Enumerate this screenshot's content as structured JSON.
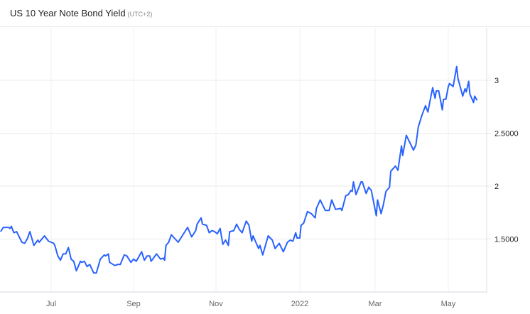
{
  "header": {
    "title": "US 10 Year Note Bond Yield",
    "timezone": "(UTC+2)"
  },
  "colors": {
    "line": "#2962ff",
    "grid": "#e8e8e8",
    "axis": "#dcdcdc"
  },
  "chart_data": {
    "type": "line",
    "title": "US 10 Year Note Bond Yield",
    "xlabel": "",
    "ylabel": "",
    "ylim": [
      1.0,
      3.2
    ],
    "y_ticks": [
      {
        "value": 1.5,
        "label": "1.5000"
      },
      {
        "value": 2,
        "label": "2"
      },
      {
        "value": 2.5,
        "label": "2.5000"
      },
      {
        "value": 3,
        "label": "3"
      }
    ],
    "x_ticks": [
      {
        "date": "2021-07-01",
        "label": "Jul"
      },
      {
        "date": "2021-09-01",
        "label": "Sep"
      },
      {
        "date": "2021-11-01",
        "label": "Nov"
      },
      {
        "date": "2022-01-01",
        "label": "2022"
      },
      {
        "date": "2022-03-01",
        "label": "Mar"
      },
      {
        "date": "2022-05-01",
        "label": "May"
      }
    ],
    "y_axis_position": "right",
    "grid": true,
    "legend": "none",
    "series": [
      {
        "points": [
          [
            "2021-05-24",
            1.57
          ],
          [
            "2021-05-26",
            1.61
          ],
          [
            "2021-05-30",
            1.61
          ],
          [
            "2021-05-31",
            1.6
          ],
          [
            "2021-06-01",
            1.62
          ],
          [
            "2021-06-03",
            1.56
          ],
          [
            "2021-06-05",
            1.57
          ],
          [
            "2021-06-09",
            1.47
          ],
          [
            "2021-06-11",
            1.46
          ],
          [
            "2021-06-13",
            1.5
          ],
          [
            "2021-06-15",
            1.57
          ],
          [
            "2021-06-18",
            1.44
          ],
          [
            "2021-06-21",
            1.49
          ],
          [
            "2021-06-22",
            1.47
          ],
          [
            "2021-06-26",
            1.53
          ],
          [
            "2021-06-29",
            1.48
          ],
          [
            "2021-07-03",
            1.46
          ],
          [
            "2021-07-04",
            1.43
          ],
          [
            "2021-07-06",
            1.34
          ],
          [
            "2021-07-08",
            1.3
          ],
          [
            "2021-07-10",
            1.36
          ],
          [
            "2021-07-12",
            1.36
          ],
          [
            "2021-07-14",
            1.42
          ],
          [
            "2021-07-16",
            1.31
          ],
          [
            "2021-07-18",
            1.29
          ],
          [
            "2021-07-20",
            1.2
          ],
          [
            "2021-07-23",
            1.29
          ],
          [
            "2021-07-24",
            1.28
          ],
          [
            "2021-07-26",
            1.29
          ],
          [
            "2021-07-28",
            1.24
          ],
          [
            "2021-07-30",
            1.26
          ],
          [
            "2021-08-02",
            1.18
          ],
          [
            "2021-08-04",
            1.18
          ],
          [
            "2021-08-07",
            1.31
          ],
          [
            "2021-08-10",
            1.35
          ],
          [
            "2021-08-11",
            1.34
          ],
          [
            "2021-08-13",
            1.36
          ],
          [
            "2021-08-14",
            1.28
          ],
          [
            "2021-08-18",
            1.25
          ],
          [
            "2021-08-20",
            1.26
          ],
          [
            "2021-08-22",
            1.26
          ],
          [
            "2021-08-25",
            1.35
          ],
          [
            "2021-08-27",
            1.34
          ],
          [
            "2021-08-28",
            1.32
          ],
          [
            "2021-08-30",
            1.28
          ],
          [
            "2021-09-01",
            1.31
          ],
          [
            "2021-09-03",
            1.29
          ],
          [
            "2021-09-07",
            1.38
          ],
          [
            "2021-09-09",
            1.3
          ],
          [
            "2021-09-11",
            1.34
          ],
          [
            "2021-09-13",
            1.34
          ],
          [
            "2021-09-14",
            1.29
          ],
          [
            "2021-09-18",
            1.36
          ],
          [
            "2021-09-21",
            1.31
          ],
          [
            "2021-09-23",
            1.32
          ],
          [
            "2021-09-24",
            1.3
          ],
          [
            "2021-09-25",
            1.44
          ],
          [
            "2021-09-27",
            1.47
          ],
          [
            "2021-09-29",
            1.54
          ],
          [
            "2021-10-04",
            1.47
          ],
          [
            "2021-10-07",
            1.53
          ],
          [
            "2021-10-11",
            1.61
          ],
          [
            "2021-10-14",
            1.52
          ],
          [
            "2021-10-17",
            1.58
          ],
          [
            "2021-10-18",
            1.64
          ],
          [
            "2021-10-21",
            1.7
          ],
          [
            "2021-10-22",
            1.64
          ],
          [
            "2021-10-25",
            1.63
          ],
          [
            "2021-10-27",
            1.56
          ],
          [
            "2021-10-29",
            1.58
          ],
          [
            "2021-10-31",
            1.57
          ],
          [
            "2021-11-02",
            1.55
          ],
          [
            "2021-11-04",
            1.6
          ],
          [
            "2021-11-06",
            1.45
          ],
          [
            "2021-11-08",
            1.49
          ],
          [
            "2021-11-10",
            1.44
          ],
          [
            "2021-11-11",
            1.57
          ],
          [
            "2021-11-14",
            1.58
          ],
          [
            "2021-11-16",
            1.64
          ],
          [
            "2021-11-18",
            1.59
          ],
          [
            "2021-11-20",
            1.56
          ],
          [
            "2021-11-23",
            1.67
          ],
          [
            "2021-11-25",
            1.63
          ],
          [
            "2021-11-27",
            1.48
          ],
          [
            "2021-11-28",
            1.53
          ],
          [
            "2021-12-02",
            1.41
          ],
          [
            "2021-12-03",
            1.44
          ],
          [
            "2021-12-05",
            1.35
          ],
          [
            "2021-12-09",
            1.53
          ],
          [
            "2021-12-12",
            1.49
          ],
          [
            "2021-12-14",
            1.41
          ],
          [
            "2021-12-17",
            1.46
          ],
          [
            "2021-12-20",
            1.38
          ],
          [
            "2021-12-23",
            1.47
          ],
          [
            "2021-12-25",
            1.49
          ],
          [
            "2021-12-27",
            1.48
          ],
          [
            "2021-12-29",
            1.56
          ],
          [
            "2021-12-30",
            1.51
          ],
          [
            "2022-01-01",
            1.51
          ],
          [
            "2022-01-02",
            1.63
          ],
          [
            "2022-01-04",
            1.65
          ],
          [
            "2022-01-07",
            1.76
          ],
          [
            "2022-01-10",
            1.74
          ],
          [
            "2022-01-13",
            1.7
          ],
          [
            "2022-01-14",
            1.79
          ],
          [
            "2022-01-17",
            1.87
          ],
          [
            "2022-01-21",
            1.77
          ],
          [
            "2022-01-24",
            1.77
          ],
          [
            "2022-01-26",
            1.87
          ],
          [
            "2022-01-29",
            1.78
          ],
          [
            "2022-02-02",
            1.79
          ],
          [
            "2022-02-03",
            1.77
          ],
          [
            "2022-02-06",
            1.91
          ],
          [
            "2022-02-08",
            1.92
          ],
          [
            "2022-02-10",
            1.96
          ],
          [
            "2022-02-11",
            1.95
          ],
          [
            "2022-02-12",
            2.04
          ],
          [
            "2022-02-14",
            1.92
          ],
          [
            "2022-02-18",
            2.04
          ],
          [
            "2022-02-19",
            2.04
          ],
          [
            "2022-02-22",
            1.93
          ],
          [
            "2022-02-24",
            1.99
          ],
          [
            "2022-02-26",
            1.96
          ],
          [
            "2022-03-02",
            1.72
          ],
          [
            "2022-03-03",
            1.87
          ],
          [
            "2022-03-06",
            1.74
          ],
          [
            "2022-03-08",
            1.83
          ],
          [
            "2022-03-10",
            1.95
          ],
          [
            "2022-03-13",
            1.99
          ],
          [
            "2022-03-14",
            2.14
          ],
          [
            "2022-03-18",
            2.19
          ],
          [
            "2022-03-20",
            2.15
          ],
          [
            "2022-03-23",
            2.38
          ],
          [
            "2022-03-24",
            2.29
          ],
          [
            "2022-03-27",
            2.48
          ],
          [
            "2022-03-30",
            2.41
          ],
          [
            "2022-04-02",
            2.34
          ],
          [
            "2022-04-04",
            2.39
          ],
          [
            "2022-04-06",
            2.56
          ],
          [
            "2022-04-09",
            2.67
          ],
          [
            "2022-04-12",
            2.76
          ],
          [
            "2022-04-14",
            2.7
          ],
          [
            "2022-04-16",
            2.82
          ],
          [
            "2022-04-18",
            2.93
          ],
          [
            "2022-04-20",
            2.83
          ],
          [
            "2022-04-21",
            2.9
          ],
          [
            "2022-04-23",
            2.9
          ],
          [
            "2022-04-26",
            2.72
          ],
          [
            "2022-04-27",
            2.82
          ],
          [
            "2022-04-29",
            2.82
          ],
          [
            "2022-05-01",
            2.94
          ],
          [
            "2022-05-02",
            2.97
          ],
          [
            "2022-05-05",
            2.94
          ],
          [
            "2022-05-08",
            3.13
          ],
          [
            "2022-05-09",
            3.02
          ],
          [
            "2022-05-13",
            2.85
          ],
          [
            "2022-05-15",
            2.92
          ],
          [
            "2022-05-16",
            2.89
          ],
          [
            "2022-05-18",
            2.99
          ],
          [
            "2022-05-19",
            2.87
          ],
          [
            "2022-05-22",
            2.79
          ],
          [
            "2022-05-23",
            2.85
          ],
          [
            "2022-05-25",
            2.81
          ]
        ]
      }
    ]
  }
}
